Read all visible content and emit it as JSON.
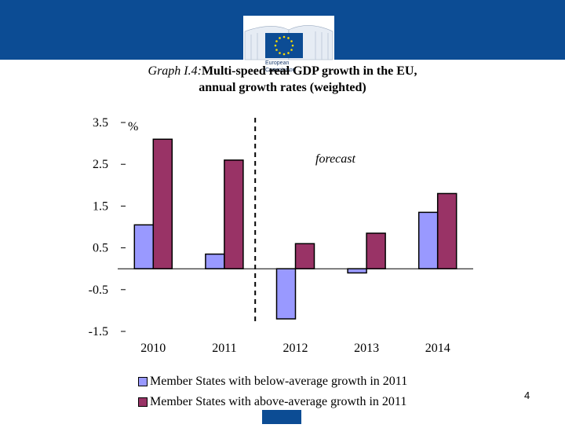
{
  "banner": {
    "logo_line1": "European",
    "logo_line2": "Commission"
  },
  "title": {
    "prefix": "Graph I.4:",
    "part1": "Multi-speed ",
    "strike": "real",
    "part2": " GDP growth in the  EU,",
    "line2": "annual growth rates (weighted)"
  },
  "page_number": "4",
  "colors": {
    "banner": "#0c4c94",
    "series_below": "#9999ff",
    "series_above": "#993366"
  },
  "chart_data": {
    "type": "bar",
    "title": "Multi-speed real GDP growth in the EU, annual growth rates (weighted)",
    "ylabel": "%",
    "xlabel": "",
    "ylim": [
      -1.5,
      3.5
    ],
    "yticks": [
      "3.5",
      "2.5",
      "1.5",
      "0.5",
      "-0.5",
      "-1.5"
    ],
    "ytick_values": [
      3.5,
      2.5,
      1.5,
      0.5,
      -0.5,
      -1.5
    ],
    "categories": [
      "2010",
      "2011",
      "2012",
      "2013",
      "2014"
    ],
    "series": [
      {
        "name": "Member States with below-average growth in 2011",
        "color": "#9999ff",
        "values": [
          1.05,
          0.35,
          -1.2,
          -0.1,
          1.35
        ]
      },
      {
        "name": "Member States with above-average growth in 2011",
        "color": "#993366",
        "values": [
          3.1,
          2.6,
          0.6,
          0.85,
          1.8
        ]
      }
    ],
    "annotation": "forecast",
    "forecast_divider_after": "2011",
    "grid": false,
    "legend_position": "bottom"
  }
}
